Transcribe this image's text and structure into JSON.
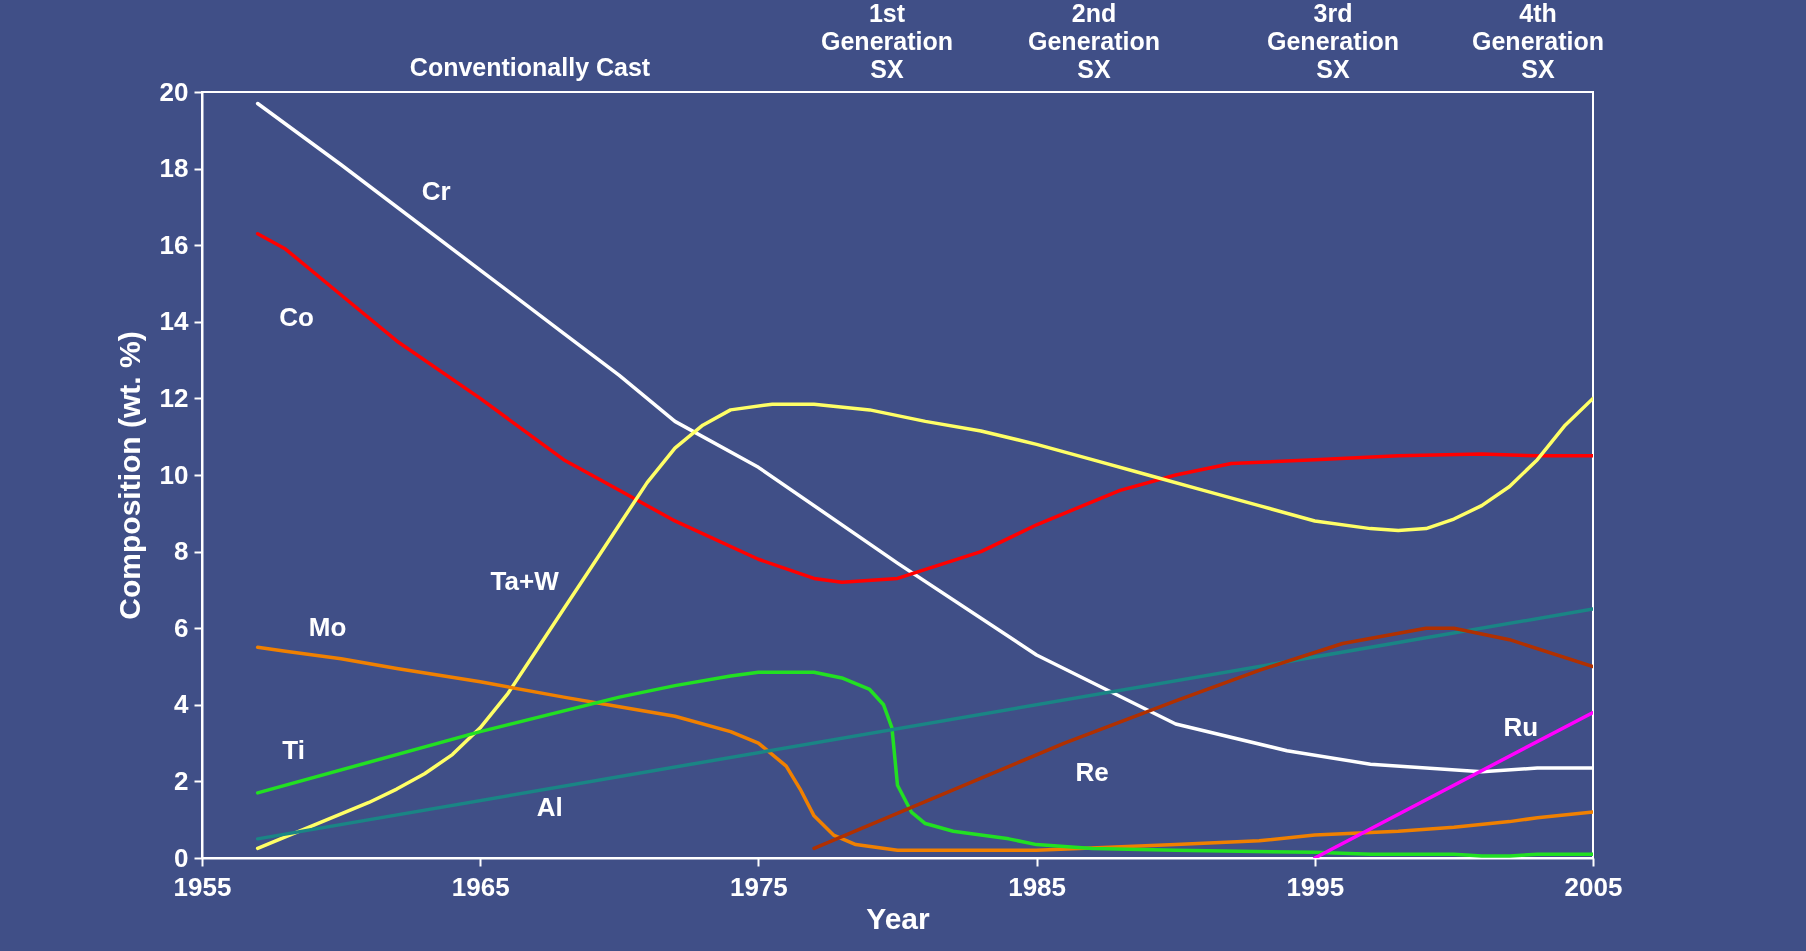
{
  "chart_data": {
    "type": "line",
    "xlabel": "Year",
    "ylabel": "Composition (wt. %)",
    "xlim": [
      1955,
      2005
    ],
    "xticks": [
      1955,
      1965,
      1975,
      1985,
      1995,
      2005
    ],
    "ylim": [
      0,
      20
    ],
    "yticks": [
      0,
      2,
      4,
      6,
      8,
      10,
      12,
      14,
      16,
      18,
      20
    ],
    "annotations": [
      "Conventionally Cast",
      "1st\nGeneration\nSX",
      "2nd\nGeneration\nSX",
      "3rd\nGeneration\nSX",
      "4th\nGeneration\nSX"
    ],
    "series": [
      {
        "name": "Cr",
        "color": "#ffffff",
        "x": [
          1957,
          1960,
          1965,
          1968,
          1970,
          1972,
          1975,
          1980,
          1985,
          1990,
          1994,
          1997,
          1999,
          2001,
          2003,
          2005
        ],
        "values": [
          19.7,
          18.1,
          15.35,
          13.7,
          12.6,
          11.4,
          10.2,
          7.7,
          5.3,
          3.5,
          2.8,
          2.45,
          2.35,
          2.25,
          2.35,
          2.35
        ]
      },
      {
        "name": "Co",
        "color": "#ff0000",
        "x": [
          1957,
          1958,
          1960,
          1962,
          1965,
          1968,
          1970,
          1972,
          1975,
          1977,
          1978,
          1980,
          1983,
          1985,
          1988,
          1990,
          1992,
          1995,
          1998,
          2001,
          2003,
          2005
        ],
        "values": [
          16.3,
          15.9,
          14.7,
          13.5,
          12.0,
          10.4,
          9.6,
          8.8,
          7.8,
          7.3,
          7.2,
          7.3,
          8.0,
          8.7,
          9.6,
          10.0,
          10.3,
          10.4,
          10.5,
          10.55,
          10.5,
          10.5
        ]
      },
      {
        "name": "Ta+W",
        "color": "#ffff66",
        "x": [
          1957,
          1959,
          1961,
          1962,
          1963,
          1964,
          1965,
          1966,
          1967,
          1968,
          1969,
          1970,
          1971,
          1972,
          1973,
          1974,
          1975.5,
          1977,
          1979,
          1981,
          1983,
          1985,
          1987,
          1989,
          1991,
          1993,
          1995,
          1997,
          1998,
          1999,
          2000,
          2001,
          2002,
          2003,
          2004,
          2005
        ],
        "values": [
          0.25,
          0.85,
          1.45,
          1.8,
          2.2,
          2.7,
          3.4,
          4.3,
          5.4,
          6.5,
          7.6,
          8.7,
          9.8,
          10.7,
          11.3,
          11.7,
          11.85,
          11.85,
          11.7,
          11.4,
          11.15,
          10.8,
          10.4,
          10.0,
          9.6,
          9.2,
          8.8,
          8.6,
          8.55,
          8.6,
          8.85,
          9.2,
          9.7,
          10.4,
          11.3,
          12.0
        ]
      },
      {
        "name": "Mo",
        "color": "#f08000",
        "x": [
          1957,
          1958,
          1960,
          1962,
          1965,
          1968,
          1970,
          1972,
          1974,
          1975,
          1976,
          1976.5,
          1977,
          1977.7,
          1978.5,
          1980,
          1985,
          1990,
          1993,
          1995,
          1998,
          2000,
          2002,
          2003,
          2005
        ],
        "values": [
          5.5,
          5.4,
          5.2,
          4.95,
          4.6,
          4.2,
          3.95,
          3.7,
          3.3,
          3.0,
          2.4,
          1.8,
          1.1,
          0.6,
          0.35,
          0.2,
          0.2,
          0.35,
          0.45,
          0.6,
          0.7,
          0.8,
          0.95,
          1.05,
          1.2
        ]
      },
      {
        "name": "Ti",
        "color": "#22e022",
        "x": [
          1957,
          1965,
          1970,
          1972,
          1974,
          1975,
          1977,
          1978,
          1979,
          1979.5,
          1979.8,
          1980,
          1980.5,
          1981,
          1982,
          1984,
          1985,
          1987,
          1990,
          1995,
          1997,
          2000,
          2001,
          2002,
          2003,
          2005
        ],
        "values": [
          1.7,
          3.3,
          4.2,
          4.5,
          4.75,
          4.85,
          4.85,
          4.7,
          4.4,
          4.0,
          3.4,
          1.9,
          1.2,
          0.9,
          0.7,
          0.5,
          0.35,
          0.25,
          0.2,
          0.15,
          0.1,
          0.1,
          0.05,
          0.05,
          0.1,
          0.1
        ]
      },
      {
        "name": "Al",
        "color": "#1a8585",
        "x": [
          1957,
          2005
        ],
        "values": [
          0.5,
          6.5
        ]
      },
      {
        "name": "Re",
        "color": "#b03000",
        "x": [
          1977,
          1986,
          1990,
          1993,
          1996,
          1999,
          2000,
          2002,
          2005
        ],
        "values": [
          0.25,
          3.0,
          4.1,
          4.9,
          5.6,
          6.0,
          6.0,
          5.7,
          5.0
        ]
      },
      {
        "name": "Ru",
        "color": "#ff00ff",
        "x": [
          1995,
          2005
        ],
        "values": [
          0,
          3.8
        ]
      }
    ]
  }
}
